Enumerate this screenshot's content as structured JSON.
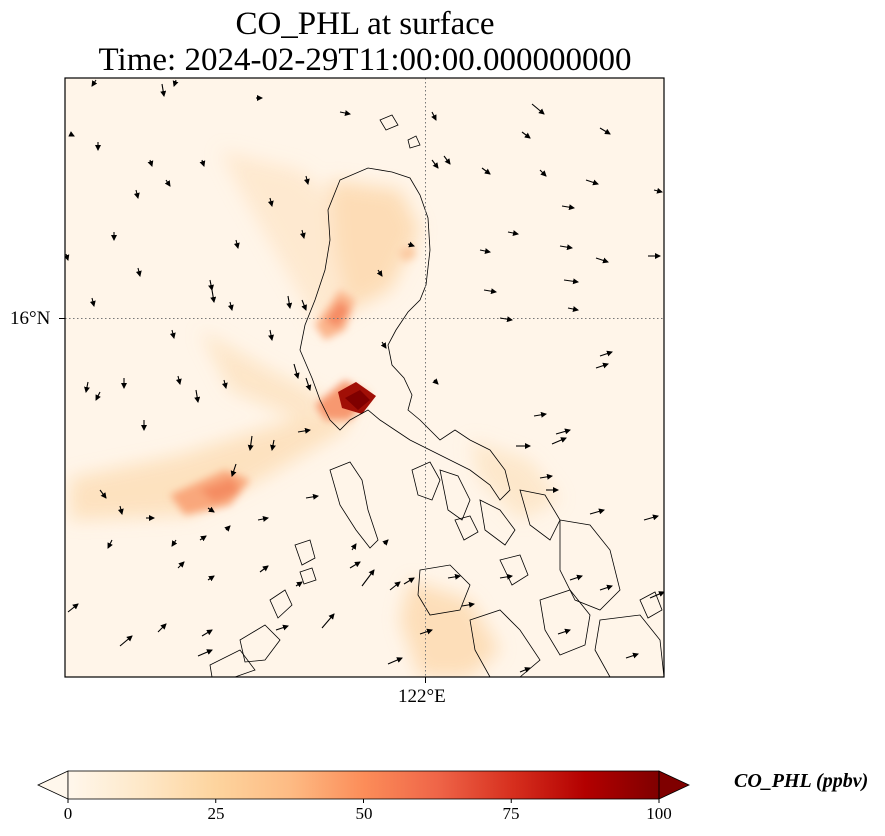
{
  "title": {
    "line1": "CO_PHL at surface",
    "line2": "Time: 2024-02-29T11:00:00.000000000"
  },
  "map": {
    "variable": "CO_PHL",
    "level": "surface",
    "colormap": "OrRd",
    "lat_gridline_label": "16°N",
    "lon_gridline_label": "122°E",
    "gridlines": "dotted",
    "overlay": [
      "coastlines",
      "wind-vectors"
    ]
  },
  "colorbar": {
    "units_label": "CO_PHL (ppbv)",
    "ticks": [
      "0",
      "25",
      "50",
      "75",
      "100"
    ],
    "range": [
      0,
      100
    ],
    "extend": "both",
    "colors": [
      "#fff7ec",
      "#fee8c8",
      "#fdd49e",
      "#fdbb84",
      "#fc8d59",
      "#ef6548",
      "#d7301f",
      "#b30000",
      "#7f0000"
    ]
  }
}
